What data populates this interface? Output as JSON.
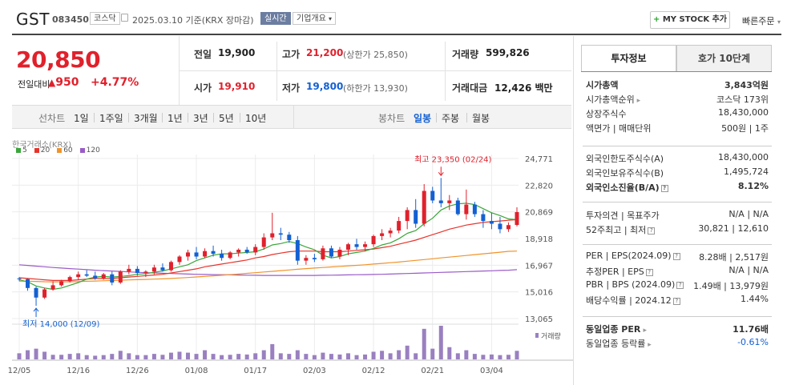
{
  "header": {
    "title": "GST",
    "code": "083450",
    "market_tag": "코스닥",
    "date": "2025.03.10",
    "date_suffix": "기준(KRX 장마감)",
    "realtime_tag": "실시간",
    "company_info_tag": "기업개요",
    "mystock_label": "MY STOCK 추가",
    "quick_order_label": "빠른주문"
  },
  "price": {
    "current": "20,850",
    "change_label": "전일대비",
    "change_value": "950",
    "change_pct": "+4.77%"
  },
  "quote": {
    "prev_label": "전일",
    "prev": "19,900",
    "open_label": "시가",
    "open": "19,910",
    "high_label": "고가",
    "high": "21,200",
    "upper_limit": "(상한가 25,850)",
    "low_label": "저가",
    "low": "19,800",
    "lower_limit": "(하한가 13,930)",
    "volume_label": "거래량",
    "volume": "599,826",
    "amount_label": "거래대금",
    "amount": "12,426",
    "amount_unit": "백만"
  },
  "periods": {
    "line_label": "선차트",
    "line_items": [
      "1일",
      "1주일",
      "3개월",
      "1년",
      "3년",
      "5년",
      "10년"
    ],
    "candle_label": "봉차트",
    "candle_items": [
      "일봉",
      "주봉",
      "월봉"
    ],
    "selected": "일봉"
  },
  "chart_data": {
    "type": "candlestick",
    "source_label": "한국거래소(KRX)",
    "legend": [
      {
        "name": "5",
        "color": "#3aa63a"
      },
      {
        "name": "20",
        "color": "#e8332b"
      },
      {
        "name": "60",
        "color": "#f0932b"
      },
      {
        "name": "120",
        "color": "#9a5bc8"
      }
    ],
    "y_ticks": [
      "24,771",
      "22,820",
      "20,869",
      "18,918",
      "16,967",
      "15,016",
      "13,065"
    ],
    "ylim": [
      13065,
      24771
    ],
    "x_ticks": [
      {
        "label": "12/05",
        "index": 0
      },
      {
        "label": "12/16",
        "index": 7
      },
      {
        "label": "12/26",
        "index": 14
      },
      {
        "label": "01/08",
        "index": 21
      },
      {
        "label": "01/17",
        "index": 28
      },
      {
        "label": "02/03",
        "index": 35
      },
      {
        "label": "02/12",
        "index": 42
      },
      {
        "label": "02/21",
        "index": 49
      },
      {
        "label": "03/04",
        "index": 56
      }
    ],
    "max_annotation": "최고 23,350 (02/24)",
    "max_index": 50,
    "min_annotation": "최저 14,000 (12/09)",
    "min_index": 2,
    "volume_label": "거래량",
    "candles": [
      [
        16000,
        16100,
        15800,
        15950
      ],
      [
        15950,
        16000,
        15100,
        15300
      ],
      [
        15300,
        15400,
        14000,
        14600
      ],
      [
        14600,
        15300,
        14500,
        15200
      ],
      [
        15200,
        15800,
        15100,
        15500
      ],
      [
        15500,
        15900,
        15400,
        15800
      ],
      [
        15800,
        16200,
        15700,
        16100
      ],
      [
        16100,
        16500,
        15900,
        16300
      ],
      [
        16300,
        16600,
        16100,
        16200
      ],
      [
        16200,
        16500,
        15900,
        16000
      ],
      [
        16000,
        16400,
        15900,
        16300
      ],
      [
        16300,
        16500,
        15500,
        15700
      ],
      [
        15700,
        16600,
        15600,
        16500
      ],
      [
        16500,
        17000,
        16300,
        16700
      ],
      [
        16700,
        16900,
        16200,
        16400
      ],
      [
        16400,
        16600,
        16100,
        16500
      ],
      [
        16500,
        17000,
        16300,
        16800
      ],
      [
        16800,
        17100,
        16500,
        16600
      ],
      [
        16600,
        17300,
        16500,
        17200
      ],
      [
        17200,
        17700,
        17000,
        17600
      ],
      [
        17600,
        18100,
        17300,
        17900
      ],
      [
        17900,
        18300,
        17400,
        17600
      ],
      [
        17600,
        18200,
        17500,
        18000
      ],
      [
        18000,
        18400,
        17600,
        17800
      ],
      [
        17800,
        18100,
        17300,
        17500
      ],
      [
        17500,
        18000,
        17400,
        17900
      ],
      [
        17900,
        18200,
        17600,
        18100
      ],
      [
        18100,
        18300,
        17800,
        17900
      ],
      [
        17900,
        18500,
        17700,
        18300
      ],
      [
        18300,
        19300,
        18100,
        19000
      ],
      [
        19000,
        20800,
        18800,
        19300
      ],
      [
        19300,
        19700,
        18800,
        19200
      ],
      [
        19200,
        19400,
        18600,
        18800
      ],
      [
        18800,
        19100,
        17000,
        17300
      ],
      [
        17300,
        17700,
        17000,
        17500
      ],
      [
        17500,
        17800,
        17200,
        17400
      ],
      [
        17400,
        18400,
        17300,
        18200
      ],
      [
        18200,
        18400,
        17500,
        17600
      ],
      [
        17600,
        18300,
        17400,
        18100
      ],
      [
        18100,
        18600,
        17700,
        18500
      ],
      [
        18500,
        18900,
        18100,
        18300
      ],
      [
        18300,
        18700,
        18000,
        18500
      ],
      [
        18500,
        19200,
        18300,
        19100
      ],
      [
        19100,
        19600,
        18800,
        19300
      ],
      [
        19300,
        19700,
        19000,
        19500
      ],
      [
        19500,
        20500,
        19300,
        20200
      ],
      [
        20200,
        21200,
        19600,
        21000
      ],
      [
        21000,
        21800,
        19700,
        20000
      ],
      [
        20000,
        22900,
        19800,
        22400
      ],
      [
        22400,
        22700,
        21500,
        21700
      ],
      [
        21700,
        23350,
        21200,
        21500
      ],
      [
        21500,
        22100,
        21000,
        21700
      ],
      [
        21700,
        21900,
        20600,
        20700
      ],
      [
        20700,
        22500,
        20300,
        21400
      ],
      [
        21400,
        21600,
        20500,
        20700
      ],
      [
        20700,
        21000,
        19700,
        20200
      ],
      [
        20200,
        20800,
        19600,
        20000
      ],
      [
        20000,
        20500,
        19300,
        19600
      ],
      [
        19600,
        20100,
        19400,
        19900
      ],
      [
        19910,
        21200,
        19800,
        20850
      ]
    ],
    "volumes": [
      20,
      30,
      35,
      25,
      15,
      15,
      18,
      20,
      14,
      12,
      14,
      18,
      28,
      20,
      14,
      14,
      18,
      15,
      22,
      25,
      22,
      18,
      30,
      18,
      14,
      15,
      18,
      16,
      20,
      30,
      50,
      20,
      18,
      30,
      18,
      14,
      22,
      18,
      16,
      20,
      14,
      16,
      25,
      28,
      20,
      30,
      45,
      20,
      100,
      35,
      110,
      40,
      20,
      30,
      18,
      15,
      16,
      14,
      15,
      28
    ],
    "ma5": [
      15900,
      15750,
      15450,
      15300,
      15200,
      15300,
      15500,
      15700,
      15950,
      16100,
      16150,
      16100,
      16150,
      16200,
      16300,
      16350,
      16450,
      16550,
      16700,
      16850,
      17000,
      17300,
      17500,
      17700,
      17800,
      17800,
      17850,
      17900,
      17950,
      18150,
      18450,
      18550,
      18700,
      18550,
      18300,
      18100,
      17700,
      17500,
      17600,
      17800,
      17900,
      18000,
      18200,
      18450,
      18600,
      18900,
      19300,
      19500,
      20000,
      20400,
      21000,
      21300,
      21450,
      21500,
      21400,
      21100,
      20800,
      20600,
      20350,
      20300
    ],
    "ma20": [
      16050,
      16000,
      15950,
      15900,
      15850,
      15850,
      15850,
      15900,
      15950,
      16000,
      16000,
      16000,
      16050,
      16100,
      16150,
      16200,
      16250,
      16300,
      16400,
      16500,
      16600,
      16700,
      16850,
      16950,
      17050,
      17150,
      17250,
      17350,
      17500,
      17600,
      17750,
      17850,
      17950,
      18000,
      18000,
      18000,
      17950,
      17950,
      17950,
      18000,
      18050,
      18100,
      18150,
      18250,
      18350,
      18500,
      18650,
      18800,
      19000,
      19200,
      19400,
      19600,
      19750,
      19900,
      20000,
      20100,
      20150,
      20200,
      20250,
      20300
    ],
    "ma60": [
      15800,
      15790,
      15780,
      15760,
      15750,
      15750,
      15760,
      15770,
      15790,
      15810,
      15830,
      15850,
      15870,
      15890,
      15910,
      15930,
      15950,
      15970,
      16000,
      16030,
      16070,
      16110,
      16150,
      16190,
      16230,
      16270,
      16320,
      16370,
      16420,
      16470,
      16520,
      16570,
      16620,
      16670,
      16720,
      16760,
      16800,
      16840,
      16880,
      16920,
      16960,
      17000,
      17050,
      17100,
      17150,
      17200,
      17260,
      17320,
      17380,
      17440,
      17500,
      17560,
      17620,
      17680,
      17740,
      17800,
      17860,
      17920,
      17980,
      18000
    ],
    "ma120": [
      17000,
      16950,
      16900,
      16850,
      16800,
      16760,
      16720,
      16680,
      16640,
      16600,
      16570,
      16540,
      16510,
      16480,
      16450,
      16420,
      16400,
      16380,
      16360,
      16340,
      16320,
      16300,
      16290,
      16280,
      16270,
      16260,
      16250,
      16240,
      16230,
      16220,
      16220,
      16220,
      16220,
      16220,
      16220,
      16220,
      16230,
      16240,
      16250,
      16260,
      16270,
      16280,
      16290,
      16300,
      16320,
      16340,
      16360,
      16380,
      16400,
      16420,
      16440,
      16460,
      16480,
      16500,
      16520,
      16540,
      16560,
      16580,
      16600,
      16640
    ]
  },
  "invest": {
    "tab_on": "투자정보",
    "tab_off": "호가 10단계",
    "rows1": [
      {
        "label": "시가총액",
        "value": "3,843억원",
        "bold": true
      },
      {
        "label": "시가총액순위",
        "value": "코스닥 173위",
        "arrow": true
      },
      {
        "label": "상장주식수",
        "value": "18,430,000"
      },
      {
        "label": "액면가 | 매매단위",
        "value": "500원 | 1주"
      }
    ],
    "rows2": [
      {
        "label": "외국인한도주식수(A)",
        "value": "18,430,000"
      },
      {
        "label": "외국인보유주식수(B)",
        "value": "1,495,724"
      },
      {
        "label": "외국인소진율(B/A)",
        "value": "8.12%",
        "bold": true,
        "help": true
      }
    ],
    "rows3": [
      {
        "label": "투자의견 | 목표주가",
        "value": "N/A | N/A"
      },
      {
        "label": "52주최고 | 최저",
        "value": "30,821 | 12,610",
        "help": true
      }
    ],
    "rows4": [
      {
        "label": "PER | EPS(2024.09)",
        "value": "8.28배 | 2,517원",
        "help": true
      },
      {
        "label": "추정PER | EPS",
        "value": "N/A | N/A",
        "help": true
      },
      {
        "label": "PBR | BPS (2024.09)",
        "value": "1.49배 | 13,979원",
        "help": true
      },
      {
        "label": "배당수익률 | 2024.12",
        "value": "1.44%",
        "help": true
      }
    ],
    "rows5": [
      {
        "label": "동일업종 PER",
        "value": "11.76배",
        "bold": true,
        "arrow": true
      },
      {
        "label": "동일업종 등락률",
        "value": "-0.61%",
        "arrow": true,
        "blue": true
      }
    ]
  },
  "colors": {
    "up": "#e0212c",
    "down": "#1360d2",
    "accent": "#6b7da0"
  }
}
